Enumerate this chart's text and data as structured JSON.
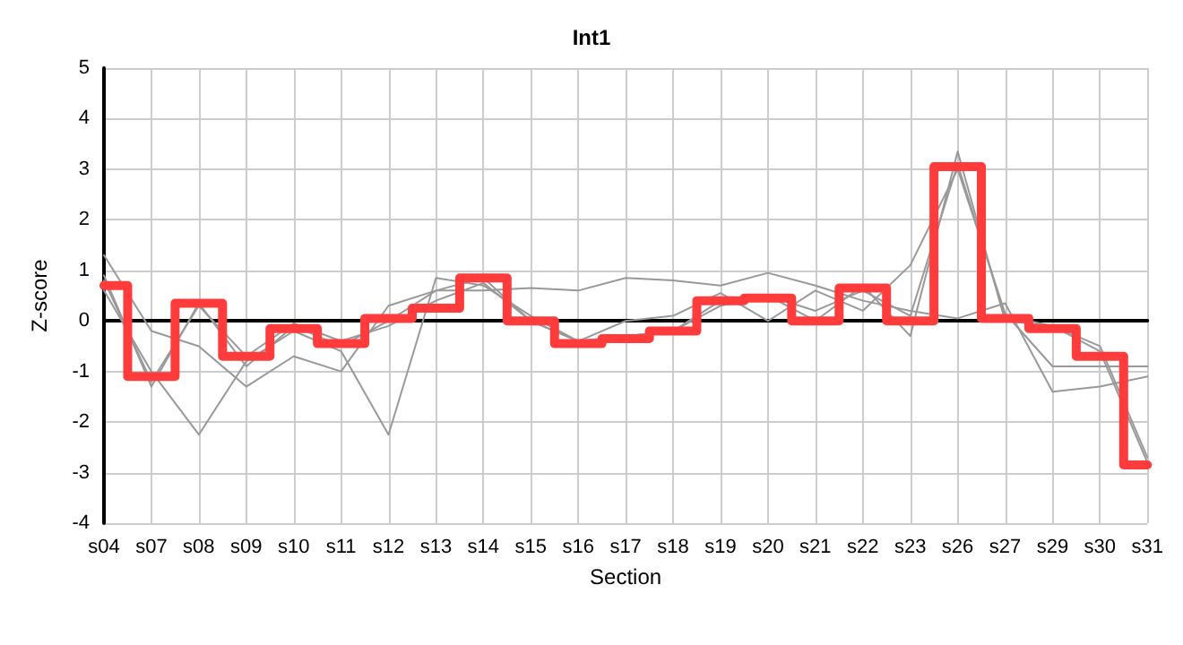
{
  "chart_data": {
    "type": "line",
    "title": "Int1",
    "xlabel": "Section",
    "ylabel": "Z-score",
    "categories": [
      "s04",
      "s07",
      "s08",
      "s09",
      "s10",
      "s11",
      "s12",
      "s13",
      "s14",
      "s15",
      "s16",
      "s17",
      "s18",
      "s19",
      "s20",
      "s21",
      "s22",
      "s23",
      "s26",
      "s27",
      "s29",
      "s30",
      "s31"
    ],
    "series": [
      {
        "color": "#999999",
        "values": [
          1.3,
          -0.2,
          -0.5,
          -1.3,
          -0.7,
          -1.0,
          0.3,
          0.6,
          0.6,
          0.65,
          0.6,
          0.85,
          0.8,
          0.7,
          0.95,
          0.7,
          0.4,
          0.2,
          0.05,
          0.35,
          -1.4,
          -1.3,
          -1.1
        ]
      },
      {
        "color": "#999999",
        "values": [
          0.6,
          -1.0,
          -2.25,
          -0.8,
          -0.2,
          -0.6,
          -2.25,
          0.85,
          0.7,
          0.1,
          -0.4,
          0.0,
          0.1,
          0.55,
          0.0,
          0.6,
          0.2,
          1.1,
          3.0,
          0.15,
          -0.9,
          -0.9,
          -0.9
        ]
      },
      {
        "color": "#999999",
        "values": [
          0.9,
          -1.3,
          0.35,
          -0.9,
          -0.1,
          -0.5,
          0.0,
          0.6,
          0.85,
          0.0,
          -0.4,
          -0.3,
          -0.2,
          0.3,
          0.5,
          0.0,
          0.7,
          -0.3,
          3.35,
          0.0,
          -0.1,
          -0.5,
          -2.7
        ]
      },
      {
        "color": "#999999",
        "values": [
          0.8,
          -1.2,
          0.3,
          -0.7,
          -0.05,
          -0.4,
          -0.1,
          0.4,
          0.75,
          0.0,
          -0.4,
          -0.3,
          -0.2,
          0.4,
          0.5,
          0.2,
          0.6,
          0.1,
          3.1,
          0.1,
          -0.1,
          -0.6,
          -2.8
        ]
      },
      {
        "type": "step",
        "color": "#ff3b3b",
        "values": [
          0.7,
          -1.1,
          0.35,
          -0.7,
          -0.15,
          -0.45,
          0.05,
          0.25,
          0.85,
          0.0,
          -0.45,
          -0.35,
          -0.2,
          0.4,
          0.45,
          0.0,
          0.65,
          0.0,
          3.05,
          0.05,
          -0.15,
          -0.7,
          -2.85
        ]
      }
    ],
    "ylim": [
      -4,
      5
    ],
    "yticks": [
      -4,
      -3,
      -2,
      -1,
      0,
      1,
      2,
      3,
      4,
      5
    ],
    "grid": true,
    "marker": "none",
    "line_style": "solid"
  }
}
